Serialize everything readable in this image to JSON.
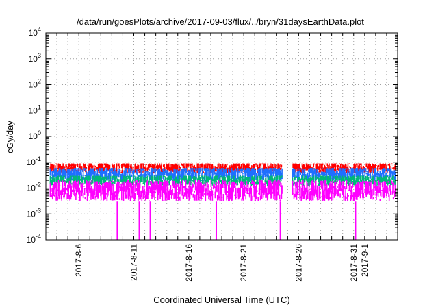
{
  "chart_data": {
    "type": "line",
    "title": "/data/run/goesPlots/archive/2017-09-03/flux/../bryn/31daysEarthData.plot",
    "xlabel": "Coordinated Universal Time (UTC)",
    "ylabel": "cGy/day",
    "y_scale": "log",
    "ylim": [
      0.0001,
      10000
    ],
    "y_ticks": [
      {
        "value": 0.0001,
        "base": "10",
        "exp": "-4"
      },
      {
        "value": 0.001,
        "base": "10",
        "exp": "-3"
      },
      {
        "value": 0.01,
        "base": "10",
        "exp": "-2"
      },
      {
        "value": 0.1,
        "base": "10",
        "exp": "-1"
      },
      {
        "value": 1,
        "base": "10",
        "exp": "0"
      },
      {
        "value": 10,
        "base": "10",
        "exp": "1"
      },
      {
        "value": 100,
        "base": "10",
        "exp": "2"
      },
      {
        "value": 1000,
        "base": "10",
        "exp": "3"
      },
      {
        "value": 10000,
        "base": "10",
        "exp": "4"
      }
    ],
    "xlim": [
      "2017-08-03",
      "2017-09-04"
    ],
    "x_ticks": [
      {
        "date": "2017-08-06",
        "label": "2017-8-6"
      },
      {
        "date": "2017-08-11",
        "label": "2017-8-11"
      },
      {
        "date": "2017-08-16",
        "label": "2017-8-16"
      },
      {
        "date": "2017-08-21",
        "label": "2017-8-21"
      },
      {
        "date": "2017-08-26",
        "label": "2017-8-26"
      },
      {
        "date": "2017-08-31",
        "label": "2017-8-31"
      },
      {
        "date": "2017-09-01",
        "label": "2017-9-1"
      }
    ],
    "grid": true,
    "legend": "none",
    "data_gap": [
      "2017-08-24T12:00",
      "2017-08-25T10:00"
    ],
    "dropouts": [
      "2017-08-09T12:00",
      "2017-08-11T12:00",
      "2017-08-12T12:00",
      "2017-08-18T12:00",
      "2017-08-24T08:00",
      "2017-08-31T04:00"
    ],
    "series": [
      {
        "color": "#ff0000",
        "min": 0.03,
        "max": 0.09,
        "typical": 0.06
      },
      {
        "color": "#1f6fff",
        "min": 0.015,
        "max": 0.06,
        "typical": 0.035
      },
      {
        "color": "#00b878",
        "min": 0.01,
        "max": 0.03,
        "typical": 0.02
      },
      {
        "color": "#ff00ff",
        "min": 0.003,
        "max": 0.025,
        "typical": 0.008,
        "dropout_min": 0.0001
      }
    ]
  }
}
